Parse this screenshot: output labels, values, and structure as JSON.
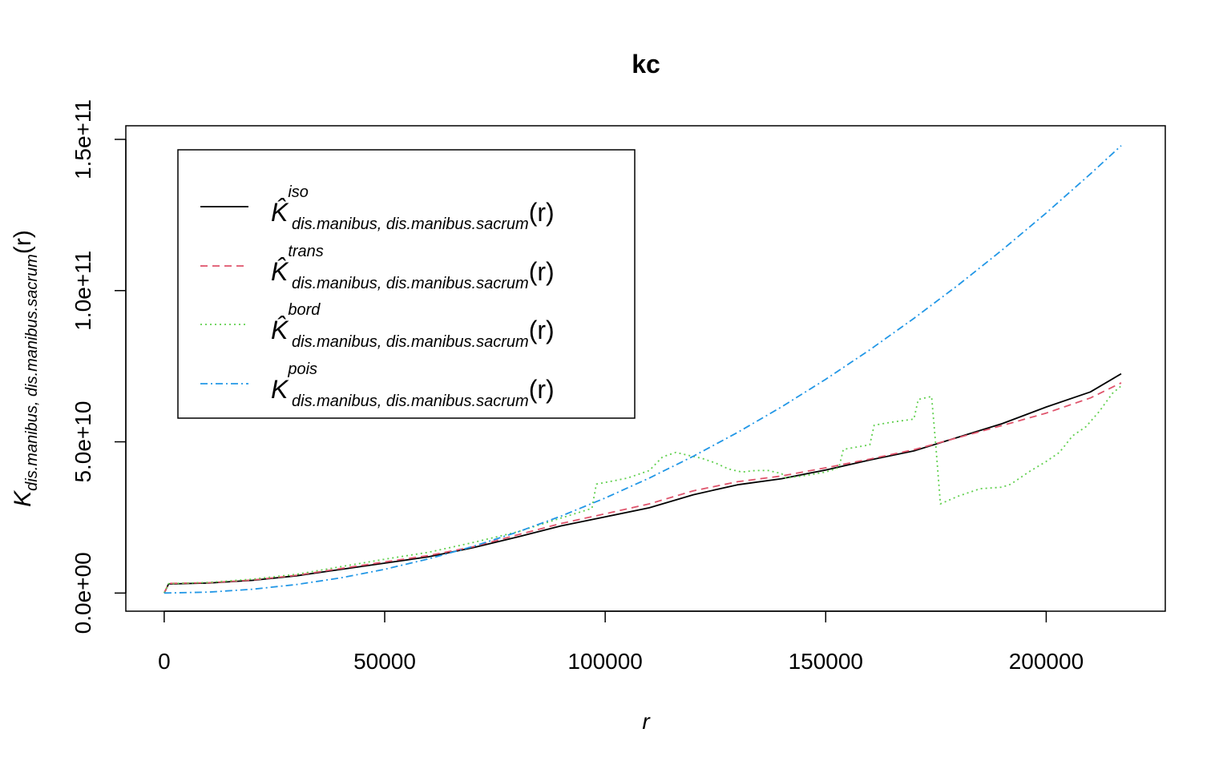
{
  "chart_data": {
    "type": "line",
    "title": "kc",
    "xlabel": "r",
    "ylabel": {
      "main": "K",
      "sub": "dis.manibus, dis.manibus.sacrum",
      "arg": "(r)"
    },
    "xlim": [
      -8700,
      227000
    ],
    "ylim": [
      -6000000000,
      154500000000
    ],
    "x_ticks": [
      0,
      50000,
      100000,
      150000,
      200000
    ],
    "x_tick_labels": [
      "0",
      "50000",
      "100000",
      "150000",
      "200000"
    ],
    "y_ticks": [
      0,
      50000000000,
      100000000000,
      150000000000
    ],
    "y_tick_labels": [
      "0.0e+00",
      "5.0e+10",
      "1.0e+11",
      "1.5e+11"
    ],
    "legend_position": "top-left",
    "series": [
      {
        "key": "iso",
        "legend": {
          "symbol": "K̂",
          "sup": "iso",
          "sub": "dis.manibus, dis.manibus.sacrum",
          "arg": "(r)"
        },
        "color": "#000000",
        "dash": "",
        "x": [
          0,
          1000,
          10000,
          20000,
          30000,
          40000,
          50000,
          60000,
          70000,
          80000,
          90000,
          100000,
          110000,
          120000,
          130000,
          140000,
          150000,
          160000,
          170000,
          180000,
          190000,
          200000,
          210000,
          217000
        ],
        "y": [
          0,
          3000000000,
          3300000000,
          4200000000,
          5700000000,
          7800000000,
          9900000000,
          12000000000,
          15000000000,
          18500000000,
          22200000000,
          25200000000,
          28200000000,
          32500000000,
          35800000000,
          37800000000,
          40700000000,
          44000000000,
          47000000000,
          51500000000,
          56000000000,
          61500000000,
          66500000000,
          72500000000
        ]
      },
      {
        "key": "trans",
        "legend": {
          "symbol": "K̂",
          "sup": "trans",
          "sub": "dis.manibus, dis.manibus.sacrum",
          "arg": "(r)"
        },
        "color": "#DF536B",
        "dash": "9,6",
        "x": [
          0,
          1000,
          10000,
          20000,
          30000,
          40000,
          50000,
          60000,
          70000,
          80000,
          90000,
          100000,
          110000,
          120000,
          130000,
          140000,
          150000,
          160000,
          170000,
          180000,
          190000,
          200000,
          210000,
          217000
        ],
        "y": [
          0,
          3200000000,
          3400000000,
          4300000000,
          5900000000,
          8100000000,
          10300000000,
          12400000000,
          15300000000,
          19200000000,
          23000000000,
          26200000000,
          29500000000,
          33800000000,
          36800000000,
          38700000000,
          41400000000,
          44300000000,
          47400000000,
          51400000000,
          55400000000,
          59500000000,
          64500000000,
          69500000000
        ]
      },
      {
        "key": "bord",
        "legend": {
          "symbol": "K̂",
          "sup": "bord",
          "sub": "dis.manibus, dis.manibus.sacrum",
          "arg": "(r)"
        },
        "color": "#61D04F",
        "dash": "2,4",
        "x": [
          0,
          1000,
          10000,
          20000,
          30000,
          40000,
          50000,
          60000,
          70000,
          80000,
          90000,
          97000,
          98000,
          105000,
          110000,
          113000,
          116000,
          119000,
          122000,
          125000,
          128000,
          131000,
          134000,
          137000,
          140000,
          141000,
          146000,
          150000,
          153000,
          154000,
          158000,
          160000,
          161000,
          165000,
          170000,
          171000,
          174000,
          175000,
          176000,
          180000,
          185000,
          190000,
          192000,
          196000,
          200000,
          203000,
          206000,
          209000,
          212000,
          215000,
          217000
        ],
        "y": [
          0,
          3100000000,
          3500000000,
          4600000000,
          6200000000,
          8700000000,
          11200000000,
          13500000000,
          16700000000,
          20200000000,
          24800000000,
          28000000000,
          36000000000,
          38000000000,
          40500000000,
          45000000000,
          46500000000,
          45500000000,
          44500000000,
          43000000000,
          41000000000,
          40000000000,
          40500000000,
          40500000000,
          39500000000,
          38000000000,
          39000000000,
          40000000000,
          41500000000,
          47500000000,
          48500000000,
          49000000000,
          55500000000,
          56500000000,
          57500000000,
          64000000000,
          65000000000,
          48000000000,
          29500000000,
          32000000000,
          34500000000,
          35000000000,
          36000000000,
          40000000000,
          43500000000,
          46500000000,
          52000000000,
          55000000000,
          60000000000,
          66000000000,
          68500000000
        ]
      },
      {
        "key": "pois",
        "legend": {
          "symbol": "K",
          "sup": "pois",
          "sub": "dis.manibus, dis.manibus.sacrum",
          "arg": "(r)"
        },
        "color": "#2297E6",
        "dash": "9,4,2,4",
        "x": [
          0,
          10000,
          20000,
          30000,
          40000,
          50000,
          60000,
          70000,
          80000,
          90000,
          100000,
          110000,
          120000,
          130000,
          140000,
          150000,
          160000,
          170000,
          180000,
          190000,
          200000,
          210000,
          217000
        ],
        "y": [
          0,
          314000000,
          1257000000,
          2827000000,
          5027000000,
          7854000000,
          11310000000,
          15394000000,
          20106000000,
          25447000000,
          31416000000,
          38013000000,
          45239000000,
          53093000000,
          61575000000,
          70686000000,
          80425000000,
          90792000000,
          101788000000,
          113411000000,
          125664000000,
          138544000000,
          147934000000
        ]
      }
    ]
  }
}
